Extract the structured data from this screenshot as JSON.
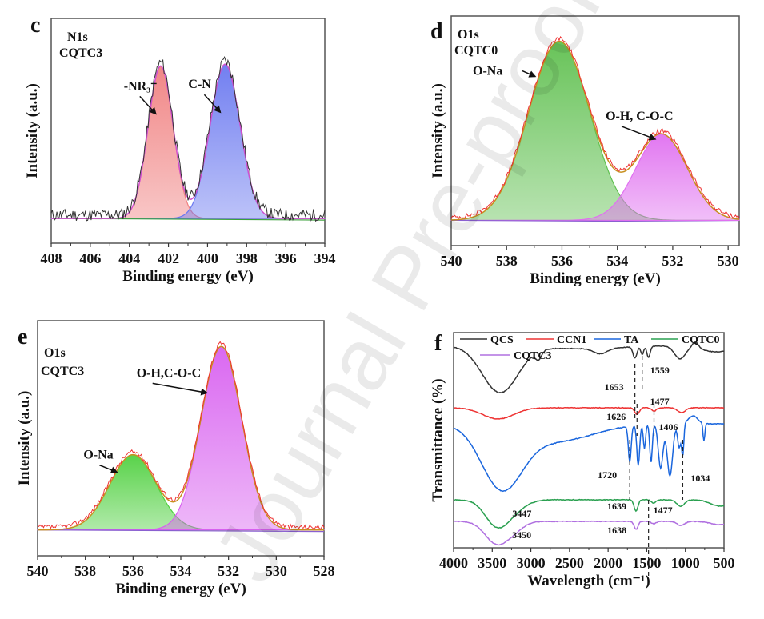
{
  "chart_data": [
    {
      "panel": "c",
      "type": "area",
      "title": "N1s",
      "subtitle": "CQTC3",
      "xlabel": "Binding energy (eV)",
      "ylabel": "Intensity (a.u.)",
      "xlim": [
        408,
        394
      ],
      "x_ticks": [
        "408",
        "406",
        "404",
        "402",
        "400",
        "398",
        "396",
        "394"
      ],
      "x_tick_values": [
        408,
        406,
        404,
        402,
        400,
        398,
        396,
        394
      ],
      "grid": false,
      "raw_color": "#333333",
      "envelope_color": "#d050d0",
      "baseline_color": "#3aa03a",
      "peaks": [
        {
          "name": "-NR3+",
          "label": "-NR₃⁺",
          "center": 402.4,
          "fwhm": 1.5,
          "height": 0.87,
          "color": "#f08080"
        },
        {
          "name": "C-N",
          "label": "C-N",
          "center": 399.1,
          "fwhm": 1.8,
          "height": 0.88,
          "color": "#6a78f0"
        }
      ]
    },
    {
      "panel": "d",
      "type": "area",
      "title": "O1s",
      "subtitle": "CQTC0",
      "xlabel": "Binding energy (eV)",
      "ylabel": "Intensity (a.u.)",
      "xlim": [
        540,
        529.6
      ],
      "x_ticks": [
        "540",
        "538",
        "536",
        "534",
        "532",
        "530"
      ],
      "x_tick_values": [
        540,
        538,
        536,
        534,
        532,
        530
      ],
      "grid": false,
      "raw_color": "#ee3333",
      "envelope_color": "#c89020",
      "peaks": [
        {
          "name": "O-Na",
          "label": "O-Na",
          "center": 536.1,
          "fwhm": 2.6,
          "height": 1.0,
          "color": "#60c050"
        },
        {
          "name": "O-H, C-O-C",
          "label": "O-H, C-O-C",
          "center": 532.4,
          "fwhm": 2.2,
          "height": 0.48,
          "color": "#e070f0"
        }
      ]
    },
    {
      "panel": "e",
      "type": "area",
      "title": "O1s",
      "subtitle": "CQTC3",
      "xlabel": "Binding energy (eV)",
      "ylabel": "Intensity (a.u.)",
      "xlim": [
        540,
        528
      ],
      "x_ticks": [
        "540",
        "538",
        "536",
        "534",
        "532",
        "530",
        "528"
      ],
      "x_tick_values": [
        540,
        538,
        536,
        534,
        532,
        530,
        528
      ],
      "grid": false,
      "raw_color": "#ee3333",
      "envelope_color": "#c89020",
      "peaks": [
        {
          "name": "O-Na",
          "label": "O-Na",
          "center": 536.0,
          "fwhm": 2.3,
          "height": 0.41,
          "color": "#50d040"
        },
        {
          "name": "O-H,C-O-C",
          "label": "O-H,C-O-C",
          "center": 532.3,
          "fwhm": 2.0,
          "height": 1.0,
          "color": "#d860f0"
        }
      ]
    },
    {
      "panel": "f",
      "type": "line",
      "xlabel": "Wavelength (cm⁻¹)",
      "ylabel": "Transmittance (%)",
      "xlim": [
        4000,
        500
      ],
      "x_ticks": [
        "4000",
        "3500",
        "3000",
        "2500",
        "2000",
        "1500",
        "1000",
        "500"
      ],
      "x_tick_values": [
        4000,
        3500,
        3000,
        2500,
        2000,
        1500,
        1000,
        500
      ],
      "grid": false,
      "legend_position": "top",
      "series": [
        {
          "name": "QCS",
          "color": "#333333"
        },
        {
          "name": "CCN1",
          "color": "#ee3333"
        },
        {
          "name": "TA",
          "color": "#1a66dd"
        },
        {
          "name": "CQTC0",
          "color": "#2aa050"
        },
        {
          "name": "CQTC3",
          "color": "#b070e0"
        }
      ],
      "annotations": [
        {
          "text": "1653",
          "series": "QCS",
          "x": 1653
        },
        {
          "text": "1559",
          "series": "QCS",
          "x": 1559
        },
        {
          "text": "1477",
          "series": "QCS",
          "x": 1477
        },
        {
          "text": "1626",
          "series": "CCN1",
          "x": 1626
        },
        {
          "text": "1406",
          "series": "CCN1",
          "x": 1406
        },
        {
          "text": "1720",
          "series": "TA",
          "x": 1720
        },
        {
          "text": "1034",
          "series": "TA",
          "x": 1034
        },
        {
          "text": "3447",
          "series": "CQTC0",
          "x": 3447
        },
        {
          "text": "1639",
          "series": "CQTC0",
          "x": 1639
        },
        {
          "text": "1477",
          "series": "CQTC0",
          "x": 1477
        },
        {
          "text": "3450",
          "series": "CQTC3",
          "x": 3450
        },
        {
          "text": "1638",
          "series": "CQTC3",
          "x": 1638
        }
      ]
    }
  ],
  "watermark": "Journal Pre-proof"
}
